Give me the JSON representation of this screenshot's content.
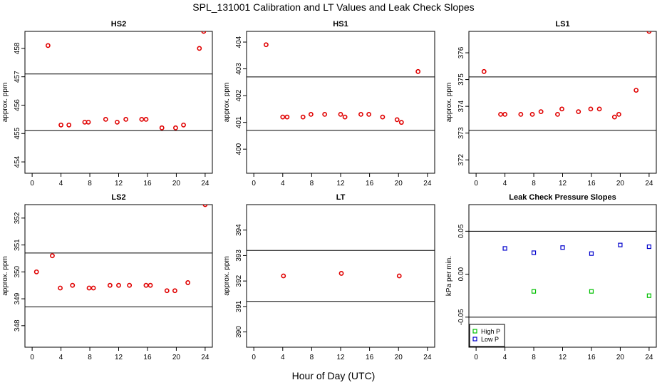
{
  "title": "SPL_131001  Calibration and LT Values and Leak Check Slopes",
  "xlabel": "Hour of Day (UTC)",
  "colors": {
    "calibration": "#e00000",
    "high_p": "#00c000",
    "low_p": "#0000cc",
    "line": "#000000"
  },
  "chart_data": [
    {
      "type": "scatter",
      "title": "HS2",
      "ylabel": "approx. ppm",
      "xlim": [
        -1,
        25
      ],
      "ylim": [
        453.6,
        458.6
      ],
      "xticks": [
        "0",
        "4",
        "8",
        "12",
        "16",
        "20",
        "24"
      ],
      "yticks": [
        "454",
        "455",
        "456",
        "457",
        "458"
      ],
      "hlines": [
        457.1,
        455.1
      ],
      "points": [
        [
          2.2,
          458.1
        ],
        [
          4.0,
          455.3
        ],
        [
          5.1,
          455.3
        ],
        [
          7.3,
          455.4
        ],
        [
          7.8,
          455.4
        ],
        [
          10.2,
          455.5
        ],
        [
          11.8,
          455.4
        ],
        [
          13.0,
          455.5
        ],
        [
          15.2,
          455.5
        ],
        [
          15.8,
          455.5
        ],
        [
          18.0,
          455.2
        ],
        [
          19.9,
          455.2
        ],
        [
          21.0,
          455.3
        ],
        [
          23.2,
          458.0
        ],
        [
          23.8,
          458.6
        ]
      ]
    },
    {
      "type": "scatter",
      "title": "HS1",
      "ylabel": "approx. ppm",
      "xlim": [
        -1,
        25
      ],
      "ylim": [
        399.1,
        404.4
      ],
      "xticks": [
        "0",
        "4",
        "8",
        "12",
        "16",
        "20",
        "24"
      ],
      "yticks": [
        "400",
        "401",
        "402",
        "403",
        "404"
      ],
      "hlines": [
        402.7,
        400.7
      ],
      "points": [
        [
          1.7,
          403.9
        ],
        [
          4.0,
          401.2
        ],
        [
          4.6,
          401.2
        ],
        [
          6.8,
          401.2
        ],
        [
          7.9,
          401.3
        ],
        [
          9.8,
          401.3
        ],
        [
          12.0,
          401.3
        ],
        [
          12.6,
          401.2
        ],
        [
          14.8,
          401.3
        ],
        [
          15.9,
          401.3
        ],
        [
          17.8,
          401.2
        ],
        [
          19.8,
          401.1
        ],
        [
          20.4,
          401.0
        ],
        [
          22.7,
          402.9
        ]
      ]
    },
    {
      "type": "scatter",
      "title": "LS1",
      "ylabel": "approx. ppm",
      "xlim": [
        -1,
        25
      ],
      "ylim": [
        371.5,
        376.8
      ],
      "xticks": [
        "0",
        "4",
        "8",
        "12",
        "16",
        "20",
        "24"
      ],
      "yticks": [
        "372",
        "373",
        "374",
        "375",
        "376"
      ],
      "hlines": [
        375.1,
        373.1
      ],
      "points": [
        [
          1.1,
          375.3
        ],
        [
          3.4,
          373.7
        ],
        [
          4.0,
          373.7
        ],
        [
          6.2,
          373.7
        ],
        [
          7.8,
          373.7
        ],
        [
          9.0,
          373.8
        ],
        [
          11.3,
          373.7
        ],
        [
          11.9,
          373.9
        ],
        [
          14.2,
          373.8
        ],
        [
          15.9,
          373.9
        ],
        [
          17.1,
          373.9
        ],
        [
          19.2,
          373.6
        ],
        [
          19.8,
          373.7
        ],
        [
          22.2,
          374.6
        ],
        [
          24.0,
          376.8
        ]
      ]
    },
    {
      "type": "scatter",
      "title": "LS2",
      "ylabel": "approx. ppm",
      "xlim": [
        -1,
        25
      ],
      "ylim": [
        347.2,
        352.5
      ],
      "xticks": [
        "0",
        "4",
        "8",
        "12",
        "16",
        "20",
        "24"
      ],
      "yticks": [
        "348",
        "349",
        "350",
        "351",
        "352"
      ],
      "hlines": [
        350.7,
        348.7
      ],
      "points": [
        [
          0.6,
          350.0
        ],
        [
          2.8,
          350.6
        ],
        [
          3.9,
          349.4
        ],
        [
          5.6,
          349.5
        ],
        [
          7.9,
          349.4
        ],
        [
          8.5,
          349.4
        ],
        [
          10.8,
          349.5
        ],
        [
          12.0,
          349.5
        ],
        [
          13.5,
          349.5
        ],
        [
          15.8,
          349.5
        ],
        [
          16.4,
          349.5
        ],
        [
          18.7,
          349.3
        ],
        [
          19.8,
          349.3
        ],
        [
          21.6,
          349.6
        ],
        [
          24.0,
          352.5
        ]
      ]
    },
    {
      "type": "scatter",
      "title": "LT",
      "ylabel": "approx. ppm",
      "xlim": [
        -1,
        25
      ],
      "ylim": [
        389.4,
        395.0
      ],
      "xticks": [
        "0",
        "4",
        "8",
        "12",
        "16",
        "20",
        "24"
      ],
      "yticks": [
        "390",
        "391",
        "392",
        "393",
        "394"
      ],
      "hlines": [
        393.2,
        391.2
      ],
      "points": [
        [
          4.1,
          392.2
        ],
        [
          12.1,
          392.3
        ],
        [
          20.1,
          392.2
        ]
      ]
    },
    {
      "type": "scatter",
      "title": "Leak Check Pressure Slopes",
      "ylabel": "kPa per min.",
      "xlim": [
        -1,
        25
      ],
      "ylim": [
        -0.085,
        0.081
      ],
      "xticks": [
        "0",
        "4",
        "8",
        "12",
        "16",
        "20",
        "24"
      ],
      "yticks": [
        "-0.05",
        "0.00",
        "0.05"
      ],
      "hlines": [
        0.05,
        -0.05
      ],
      "legend": {
        "position": "bottom-left",
        "entries": [
          "High P",
          "Low P"
        ]
      },
      "series": [
        {
          "name": "High P",
          "points": [
            [
              8,
              -0.02
            ],
            [
              16,
              -0.02
            ],
            [
              24,
              -0.025
            ]
          ]
        },
        {
          "name": "Low P",
          "points": [
            [
              4,
              0.03
            ],
            [
              8,
              0.025
            ],
            [
              12,
              0.031
            ],
            [
              16,
              0.024
            ],
            [
              20,
              0.034
            ],
            [
              24,
              0.032
            ]
          ]
        }
      ]
    }
  ]
}
